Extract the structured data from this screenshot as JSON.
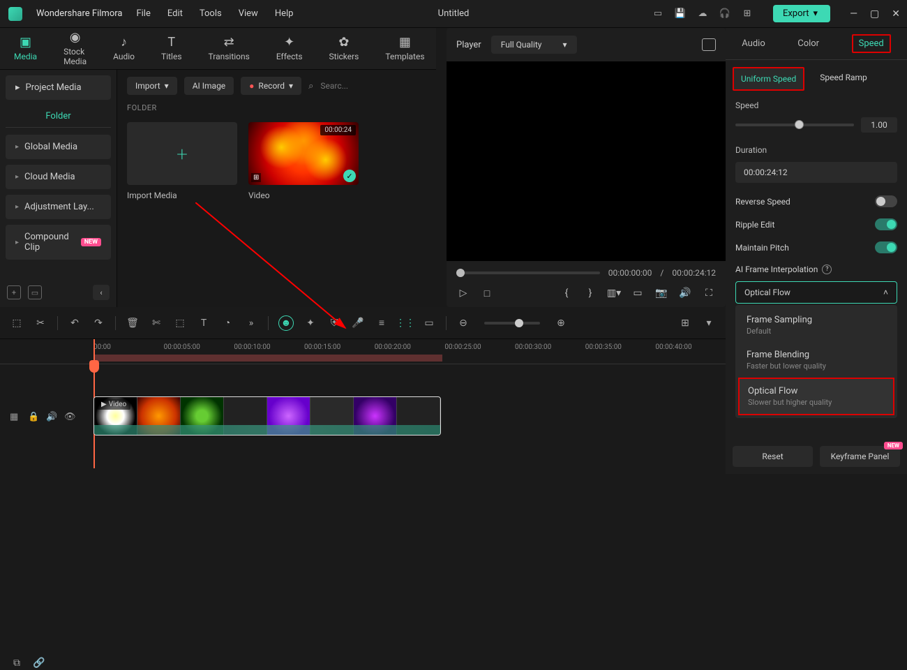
{
  "app": {
    "name": "Wondershare Filmora",
    "document": "Untitled"
  },
  "menu": {
    "file": "File",
    "edit": "Edit",
    "tools": "Tools",
    "view": "View",
    "help": "Help"
  },
  "export_btn": "Export",
  "main_tabs": {
    "media": "Media",
    "stock": "Stock Media",
    "audio": "Audio",
    "titles": "Titles",
    "transitions": "Transitions",
    "effects": "Effects",
    "stickers": "Stickers",
    "templates": "Templates"
  },
  "left": {
    "project_media": "Project Media",
    "folder": "Folder",
    "global": "Global Media",
    "cloud": "Cloud Media",
    "adjustment": "Adjustment Lay...",
    "compound": "Compound Clip",
    "new": "NEW"
  },
  "media_toolbar": {
    "import": "Import",
    "ai_image": "AI Image",
    "record": "Record",
    "search": "Searc..."
  },
  "folder_lbl": "FOLDER",
  "media": {
    "import_caption": "Import Media",
    "video_caption": "Video",
    "duration": "00:00:24"
  },
  "player": {
    "label": "Player",
    "quality": "Full Quality",
    "time_cur": "00:00:00:00",
    "time_sep": "/",
    "time_dur": "00:00:24:12"
  },
  "right": {
    "tabs": {
      "audio": "Audio",
      "color": "Color",
      "speed": "Speed"
    },
    "subtabs": {
      "uniform": "Uniform Speed",
      "ramp": "Speed Ramp"
    },
    "speed_lbl": "Speed",
    "speed_val": "1.00",
    "duration_lbl": "Duration",
    "duration_val": "00:00:24:12",
    "reverse": "Reverse Speed",
    "ripple": "Ripple Edit",
    "pitch": "Maintain Pitch",
    "ai_lbl": "AI Frame Interpolation",
    "interp_selected": "Optical Flow",
    "opts": {
      "sampling": "Frame Sampling",
      "sampling_sub": "Default",
      "blending": "Frame Blending",
      "blending_sub": "Faster but lower quality",
      "optical": "Optical Flow",
      "optical_sub": "Slower but higher quality"
    },
    "reset": "Reset",
    "keyframe": "Keyframe Panel",
    "new": "NEW"
  },
  "timeline": {
    "marks": [
      "00:00",
      "00:00:05:00",
      "00:00:10:00",
      "00:00:15:00",
      "00:00:20:00",
      "00:00:25:00",
      "00:00:30:00",
      "00:00:35:00",
      "00:00:40:00"
    ],
    "clip_label": "Video"
  },
  "colors": {
    "accent": "#3dd9b4",
    "highlight": "#d00000",
    "bg": "#1a1a1a"
  }
}
